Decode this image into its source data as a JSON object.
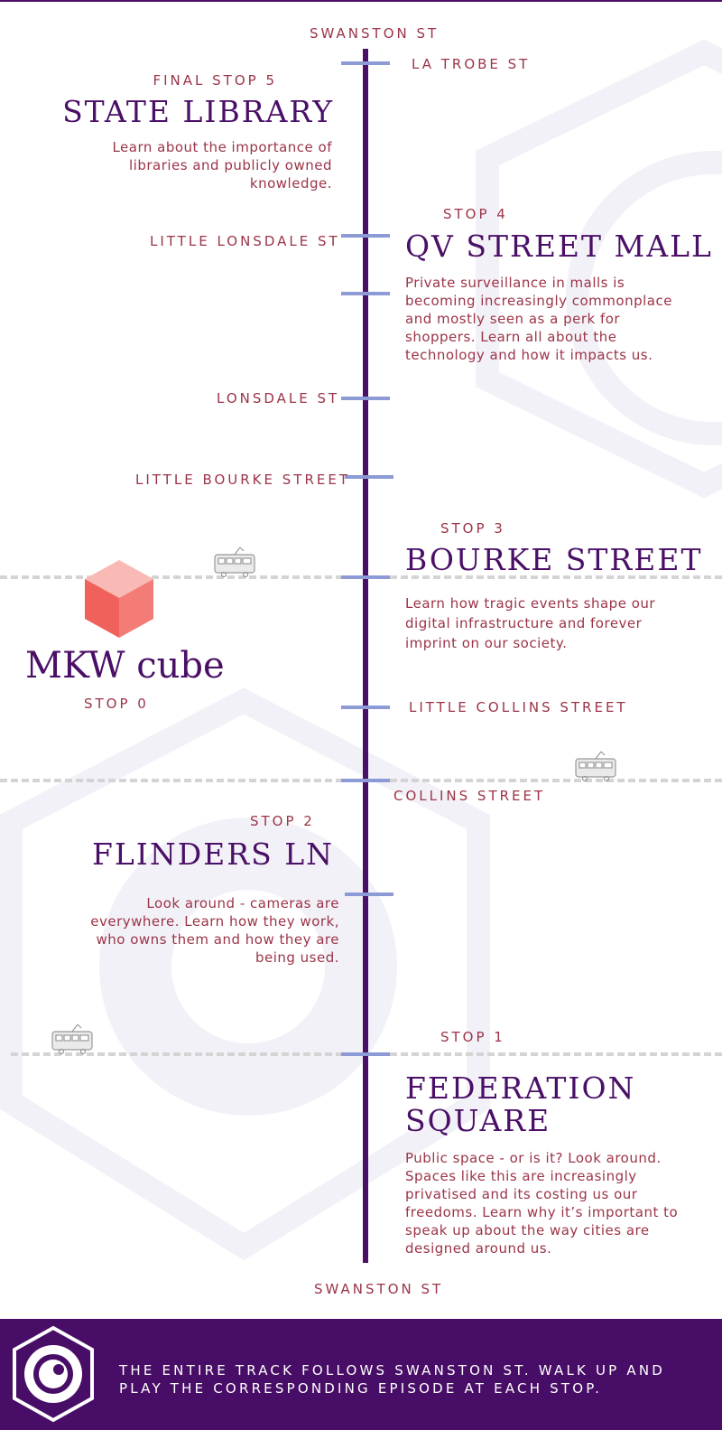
{
  "colors": {
    "purple": "#4a0f66",
    "crimson": "#9b3447",
    "tick": "#8c9ad6",
    "cube": "#f26b65"
  },
  "streets": {
    "swanston_top": "SWANSTON ST",
    "la_trobe": "LA TROBE ST",
    "little_lonsdale": "LITTLE LONSDALE ST",
    "lonsdale": "LONSDALE ST",
    "little_bourke": "LITTLE BOURKE STREET",
    "little_collins": "LITTLE COLLINS STREET",
    "collins": "COLLINS STREET",
    "swanston_bottom": "SWANSTON ST"
  },
  "stops": {
    "stop5": {
      "label": "FINAL STOP 5",
      "title": "STATE LIBRARY",
      "desc": "Learn about the importance of libraries and publicly owned knowledge."
    },
    "stop4": {
      "label": "STOP 4",
      "title": "QV STREET MALL",
      "desc": "Private surveillance in malls is becoming increasingly commonplace and mostly seen as a perk for shoppers. Learn all about the technology and how it impacts us."
    },
    "stop3": {
      "label": "STOP 3",
      "title": "BOURKE STREET",
      "desc": "Learn how tragic events shape our digital infrastructure and forever imprint on our society."
    },
    "stop2": {
      "label": "STOP 2",
      "title": "FLINDERS LN",
      "desc": "Look around - cameras are everywhere. Learn how they work, who owns them and how they are being used."
    },
    "stop1": {
      "label": "STOP 1",
      "title_line1": "FEDERATION",
      "title_line2": "SQUARE",
      "desc": "Public space - or is it? Look around. Spaces like this are increasingly privatised and its costing us our freedoms. Learn why it’s important to speak up about the way cities are designed around us."
    },
    "stop0": {
      "label": "STOP 0",
      "title": "MKW cube"
    }
  },
  "icons": {
    "tram": "tram-icon",
    "cube": "cube-icon",
    "logo": "eye-hexagon-logo-icon",
    "watermark": "hexagon-watermark-icon"
  },
  "footer": {
    "text": "THE ENTIRE TRACK FOLLOWS SWANSTON ST. WALK UP AND PLAY THE CORRESPONDING EPISODE AT EACH STOP."
  }
}
